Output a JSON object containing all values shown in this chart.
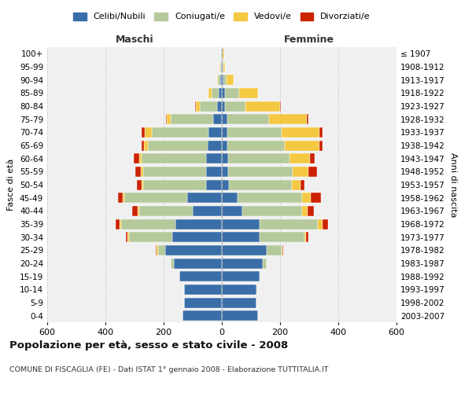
{
  "age_groups": [
    "0-4",
    "5-9",
    "10-14",
    "15-19",
    "20-24",
    "25-29",
    "30-34",
    "35-39",
    "40-44",
    "45-49",
    "50-54",
    "55-59",
    "60-64",
    "65-69",
    "70-74",
    "75-79",
    "80-84",
    "85-89",
    "90-94",
    "95-99",
    "100+"
  ],
  "birth_years": [
    "2003-2007",
    "1998-2002",
    "1993-1997",
    "1988-1992",
    "1983-1987",
    "1978-1982",
    "1973-1977",
    "1968-1972",
    "1963-1967",
    "1958-1962",
    "1953-1957",
    "1948-1952",
    "1943-1947",
    "1938-1942",
    "1933-1937",
    "1928-1932",
    "1923-1927",
    "1918-1922",
    "1913-1917",
    "1908-1912",
    "≤ 1907"
  ],
  "males": {
    "celibi": [
      135,
      130,
      130,
      145,
      165,
      195,
      170,
      160,
      100,
      120,
      55,
      55,
      55,
      50,
      45,
      30,
      15,
      10,
      5,
      3,
      2
    ],
    "coniugati": [
      0,
      0,
      1,
      2,
      10,
      25,
      150,
      185,
      185,
      215,
      215,
      215,
      220,
      205,
      195,
      145,
      60,
      25,
      8,
      3,
      2
    ],
    "vedovi": [
      0,
      0,
      0,
      0,
      0,
      3,
      3,
      5,
      5,
      5,
      5,
      8,
      10,
      12,
      25,
      15,
      15,
      10,
      3,
      1,
      0
    ],
    "divorziati": [
      0,
      0,
      0,
      0,
      0,
      3,
      8,
      15,
      18,
      18,
      18,
      18,
      18,
      10,
      10,
      3,
      3,
      0,
      0,
      0,
      0
    ]
  },
  "females": {
    "nubili": [
      125,
      120,
      120,
      130,
      140,
      155,
      130,
      130,
      70,
      55,
      25,
      22,
      22,
      20,
      20,
      18,
      10,
      10,
      5,
      3,
      2
    ],
    "coniugate": [
      0,
      0,
      1,
      2,
      15,
      50,
      155,
      200,
      205,
      220,
      215,
      220,
      210,
      195,
      185,
      145,
      70,
      50,
      10,
      3,
      2
    ],
    "vedove": [
      0,
      0,
      0,
      0,
      0,
      3,
      5,
      15,
      20,
      30,
      30,
      55,
      70,
      120,
      130,
      130,
      120,
      65,
      25,
      5,
      3
    ],
    "divorziate": [
      0,
      0,
      0,
      0,
      0,
      2,
      8,
      20,
      20,
      35,
      15,
      30,
      18,
      10,
      10,
      3,
      3,
      0,
      0,
      0,
      0
    ]
  },
  "colors": {
    "celibi": "#3a6ea8",
    "coniugati": "#b5c99a",
    "vedovi": "#f5c842",
    "divorziati": "#cc2200"
  },
  "legend_labels": [
    "Celibi/Nubili",
    "Coniugati/e",
    "Vedovi/e",
    "Divorziati/e"
  ],
  "title": "Popolazione per età, sesso e stato civile - 2008",
  "subtitle": "COMUNE DI FISCAGLIA (FE) - Dati ISTAT 1° gennaio 2008 - Elaborazione TUTTITALIA.IT",
  "xlabel_left": "Maschi",
  "xlabel_right": "Femmine",
  "ylabel_left": "Fasce di età",
  "ylabel_right": "Anni di nascita",
  "xlim": 600,
  "bg_color": "#f0f0f0",
  "grid_color": "#cccccc"
}
